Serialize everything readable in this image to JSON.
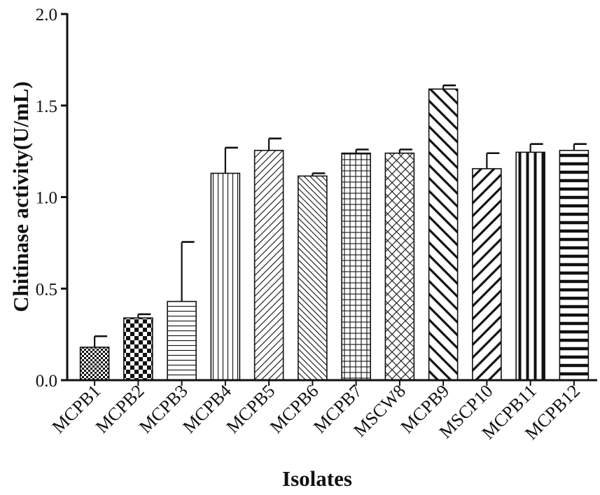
{
  "chart_data": {
    "type": "bar",
    "title": "",
    "xlabel": "Isolates",
    "ylabel": "Chitinase activity(U/mL)",
    "ylim": [
      0,
      2.0
    ],
    "yticks": [
      "0.0",
      "0.5",
      "1.0",
      "1.5",
      "2.0"
    ],
    "grid": false,
    "legend": "none",
    "categories": [
      "MCPB1",
      "MCPB2",
      "MCPB3",
      "MCPB4",
      "MCPB5",
      "MCPB6",
      "MCPB7",
      "MSCW8",
      "MCPB9",
      "MSCP10",
      "MCPB11",
      "MCPB12"
    ],
    "values": [
      0.18,
      0.34,
      0.43,
      1.13,
      1.255,
      1.115,
      1.24,
      1.24,
      1.59,
      1.155,
      1.245,
      1.255
    ],
    "errors": [
      0.06,
      0.02,
      0.325,
      0.14,
      0.065,
      0.015,
      0.02,
      0.02,
      0.02,
      0.085,
      0.045,
      0.035
    ],
    "patterns": [
      "checker-fine",
      "checker-coarse",
      "horizontal-lines",
      "vertical-lines",
      "diagonal-up-dense",
      "diagonal-down-dense",
      "grid",
      "crosshatch-diagonal",
      "diagonal-down-bold",
      "diagonal-up-bold",
      "vertical-bold",
      "horizontal-bold"
    ],
    "colors": {
      "bar_stroke": "#111111",
      "axis": "#111111",
      "background": "#ffffff"
    }
  }
}
